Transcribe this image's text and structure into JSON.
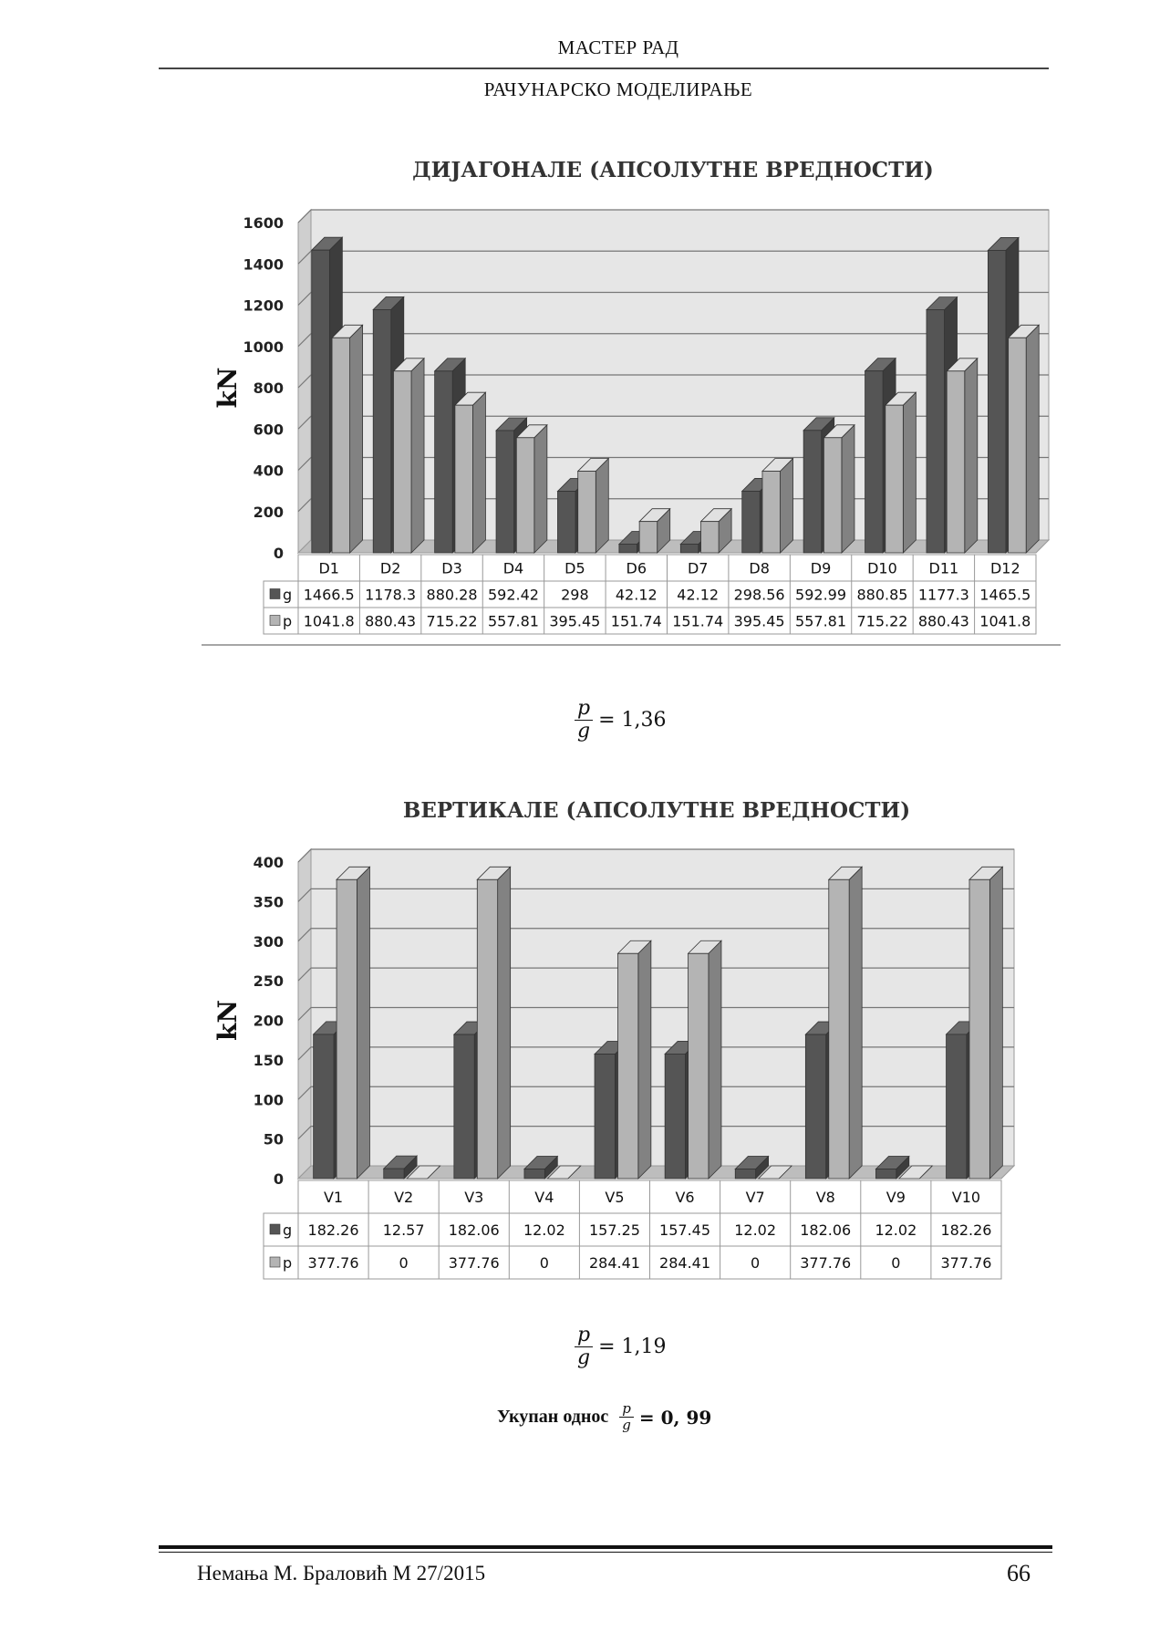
{
  "header": {
    "title": "МАСТЕР РАД",
    "subtitle": "РАЧУНАРСКО МОДЕЛИРАЊЕ"
  },
  "chart_data": [
    {
      "type": "bar",
      "title": "ДИЈАГОНАЛЕ (АПСОЛУТНЕ ВРЕДНОСТИ)",
      "ylabel": "kN",
      "ylim": [
        0,
        1600
      ],
      "yticks": [
        0,
        200,
        400,
        600,
        800,
        1000,
        1200,
        1400,
        1600
      ],
      "grid": true,
      "legend": "data-table",
      "categories": [
        "D1",
        "D2",
        "D3",
        "D4",
        "D5",
        "D6",
        "D7",
        "D8",
        "D9",
        "D10",
        "D11",
        "D12"
      ],
      "series": [
        {
          "name": "g",
          "color": "#555555",
          "values": [
            1466.5,
            1178.3,
            880.28,
            592.42,
            298,
            42.12,
            42.12,
            298.56,
            592.99,
            880.85,
            1177.3,
            1465.5
          ],
          "labels": [
            "1466.5",
            "1178.3",
            "880.28",
            "592.42",
            "298",
            "42.12",
            "42.12",
            "298.56",
            "592.99",
            "880.85",
            "1177.3",
            "1465.5"
          ]
        },
        {
          "name": "p",
          "color": "#b4b4b4",
          "values": [
            1041.8,
            880.43,
            715.22,
            557.81,
            395.45,
            151.74,
            151.74,
            395.45,
            557.81,
            715.22,
            880.43,
            1041.8
          ],
          "labels": [
            "1041.8",
            "880.43",
            "715.22",
            "557.81",
            "395.45",
            "151.74",
            "151.74",
            "395.45",
            "557.81",
            "715.22",
            "880.43",
            "1041.8"
          ]
        }
      ]
    },
    {
      "type": "bar",
      "title": "ВЕРТИКАЛЕ (АПСОЛУТНЕ ВРЕДНОСТИ)",
      "ylabel": "kN",
      "ylim": [
        0,
        400
      ],
      "yticks": [
        0,
        50,
        100,
        150,
        200,
        250,
        300,
        350,
        400
      ],
      "grid": true,
      "legend": "data-table",
      "categories": [
        "V1",
        "V2",
        "V3",
        "V4",
        "V5",
        "V6",
        "V7",
        "V8",
        "V9",
        "V10"
      ],
      "series": [
        {
          "name": "g",
          "color": "#555555",
          "values": [
            182.26,
            12.57,
            182.06,
            12.02,
            157.25,
            157.45,
            12.02,
            182.06,
            12.02,
            182.26
          ],
          "labels": [
            "182.26",
            "12.57",
            "182.06",
            "12.02",
            "157.25",
            "157.45",
            "12.02",
            "182.06",
            "12.02",
            "182.26"
          ]
        },
        {
          "name": "p",
          "color": "#b4b4b4",
          "values": [
            377.76,
            0,
            377.76,
            0,
            284.41,
            284.41,
            0,
            377.76,
            0,
            377.76
          ],
          "labels": [
            "377.76",
            "0",
            "377.76",
            "0",
            "284.41",
            "284.41",
            "0",
            "377.76",
            "0",
            "377.76"
          ]
        }
      ]
    }
  ],
  "ratios": {
    "first": {
      "num": "p",
      "den": "g",
      "value": "= 1,36"
    },
    "second": {
      "num": "p",
      "den": "g",
      "value": "= 1,19"
    },
    "total": {
      "label": "Укупан однос",
      "num": "p",
      "den": "g",
      "value": "= 0, 99"
    }
  },
  "footer": {
    "author": "Немања М. Браловић М 27/2015",
    "page": "66"
  }
}
